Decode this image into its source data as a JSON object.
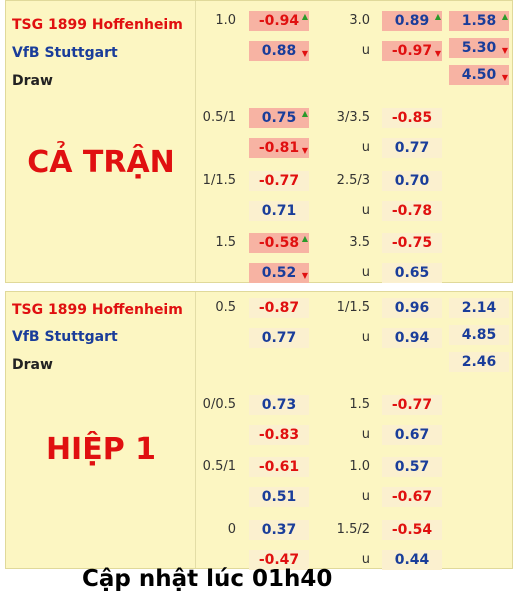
{
  "sections": [
    {
      "label": "CẢ TRẬN",
      "home": "TSG 1899 Hoffenheim",
      "away": "VfB Stuttgart",
      "draw": "Draw",
      "rows": [
        {
          "hdp_line": "1.0",
          "hdp_top": {
            "v": "-0.94",
            "c": "r",
            "hl": true,
            "arrow": "up"
          },
          "hdp_bot": {
            "v": "0.88",
            "c": "b",
            "hl": true,
            "arrow": "down"
          },
          "ou_line": "3.0",
          "ou_top": {
            "v": "0.89",
            "c": "b",
            "hl": true,
            "arrow": "up"
          },
          "ou_bot": {
            "v": "-0.97",
            "c": "r",
            "hl": true,
            "arrow": "down"
          },
          "ou_u": "u",
          "x12": [
            {
              "v": "1.58",
              "c": "b",
              "hl": true,
              "arrow": "up"
            },
            {
              "v": "5.30",
              "c": "b",
              "hl": true,
              "arrow": "down"
            },
            {
              "v": "4.50",
              "c": "b",
              "hl": true,
              "arrow": "down"
            }
          ]
        },
        {
          "hdp_line": "0.5/1",
          "hdp_top": {
            "v": "0.75",
            "c": "b",
            "hl": true,
            "arrow": "up"
          },
          "hdp_bot": {
            "v": "-0.81",
            "c": "r",
            "hl": true,
            "arrow": "down"
          },
          "ou_line": "3/3.5",
          "ou_top": {
            "v": "-0.85",
            "c": "r",
            "hl": false
          },
          "ou_bot": {
            "v": "0.77",
            "c": "b",
            "hl": false
          },
          "ou_u": "u"
        },
        {
          "hdp_line": "1/1.5",
          "hdp_top": {
            "v": "-0.77",
            "c": "r",
            "hl": false
          },
          "hdp_bot": {
            "v": "0.71",
            "c": "b",
            "hl": false
          },
          "ou_line": "2.5/3",
          "ou_top": {
            "v": "0.70",
            "c": "b",
            "hl": false
          },
          "ou_bot": {
            "v": "-0.78",
            "c": "r",
            "hl": false
          },
          "ou_u": "u"
        },
        {
          "hdp_line": "1.5",
          "hdp_top": {
            "v": "-0.58",
            "c": "r",
            "hl": true,
            "arrow": "up"
          },
          "hdp_bot": {
            "v": "0.52",
            "c": "b",
            "hl": true,
            "arrow": "down"
          },
          "ou_line": "3.5",
          "ou_top": {
            "v": "-0.75",
            "c": "r",
            "hl": false
          },
          "ou_bot": {
            "v": "0.65",
            "c": "b",
            "hl": false
          },
          "ou_u": "u"
        }
      ]
    },
    {
      "label": "HIỆP 1",
      "home": "TSG 1899 Hoffenheim",
      "away": "VfB Stuttgart",
      "draw": "Draw",
      "rows": [
        {
          "hdp_line": "0.5",
          "hdp_top": {
            "v": "-0.87",
            "c": "r",
            "hl": false
          },
          "hdp_bot": {
            "v": "0.77",
            "c": "b",
            "hl": false
          },
          "ou_line": "1/1.5",
          "ou_top": {
            "v": "0.96",
            "c": "b",
            "hl": false
          },
          "ou_bot": {
            "v": "0.94",
            "c": "b",
            "hl": false
          },
          "ou_u": "u",
          "x12": [
            {
              "v": "2.14",
              "c": "b",
              "hl": false
            },
            {
              "v": "4.85",
              "c": "b",
              "hl": false
            },
            {
              "v": "2.46",
              "c": "b",
              "hl": false
            }
          ]
        },
        {
          "hdp_line": "0/0.5",
          "hdp_top": {
            "v": "0.73",
            "c": "b",
            "hl": false
          },
          "hdp_bot": {
            "v": "-0.83",
            "c": "r",
            "hl": false
          },
          "ou_line": "1.5",
          "ou_top": {
            "v": "-0.77",
            "c": "r",
            "hl": false
          },
          "ou_bot": {
            "v": "0.67",
            "c": "b",
            "hl": false
          },
          "ou_u": "u"
        },
        {
          "hdp_line": "0.5/1",
          "hdp_top": {
            "v": "-0.61",
            "c": "r",
            "hl": false
          },
          "hdp_bot": {
            "v": "0.51",
            "c": "b",
            "hl": false
          },
          "ou_line": "1.0",
          "ou_top": {
            "v": "0.57",
            "c": "b",
            "hl": false
          },
          "ou_bot": {
            "v": "-0.67",
            "c": "r",
            "hl": false
          },
          "ou_u": "u"
        },
        {
          "hdp_line": "0",
          "hdp_top": {
            "v": "0.37",
            "c": "b",
            "hl": false
          },
          "hdp_bot": {
            "v": "-0.47",
            "c": "r",
            "hl": false
          },
          "ou_line": "1.5/2",
          "ou_top": {
            "v": "-0.54",
            "c": "r",
            "hl": false
          },
          "ou_bot": {
            "v": "0.44",
            "c": "b",
            "hl": false
          },
          "ou_u": "u"
        }
      ]
    }
  ],
  "footer": "Cập nhật lúc 01h40",
  "colors": {
    "panel": "#fcf6c2",
    "cell": "#fbf0cf",
    "highlight": "#f7b3a3",
    "negative": "#e01010",
    "positive": "#1a3d9a",
    "arrow_up": "#2a9a2a"
  },
  "icons": {
    "up": "arrow-up-icon",
    "down": "arrow-down-icon"
  }
}
